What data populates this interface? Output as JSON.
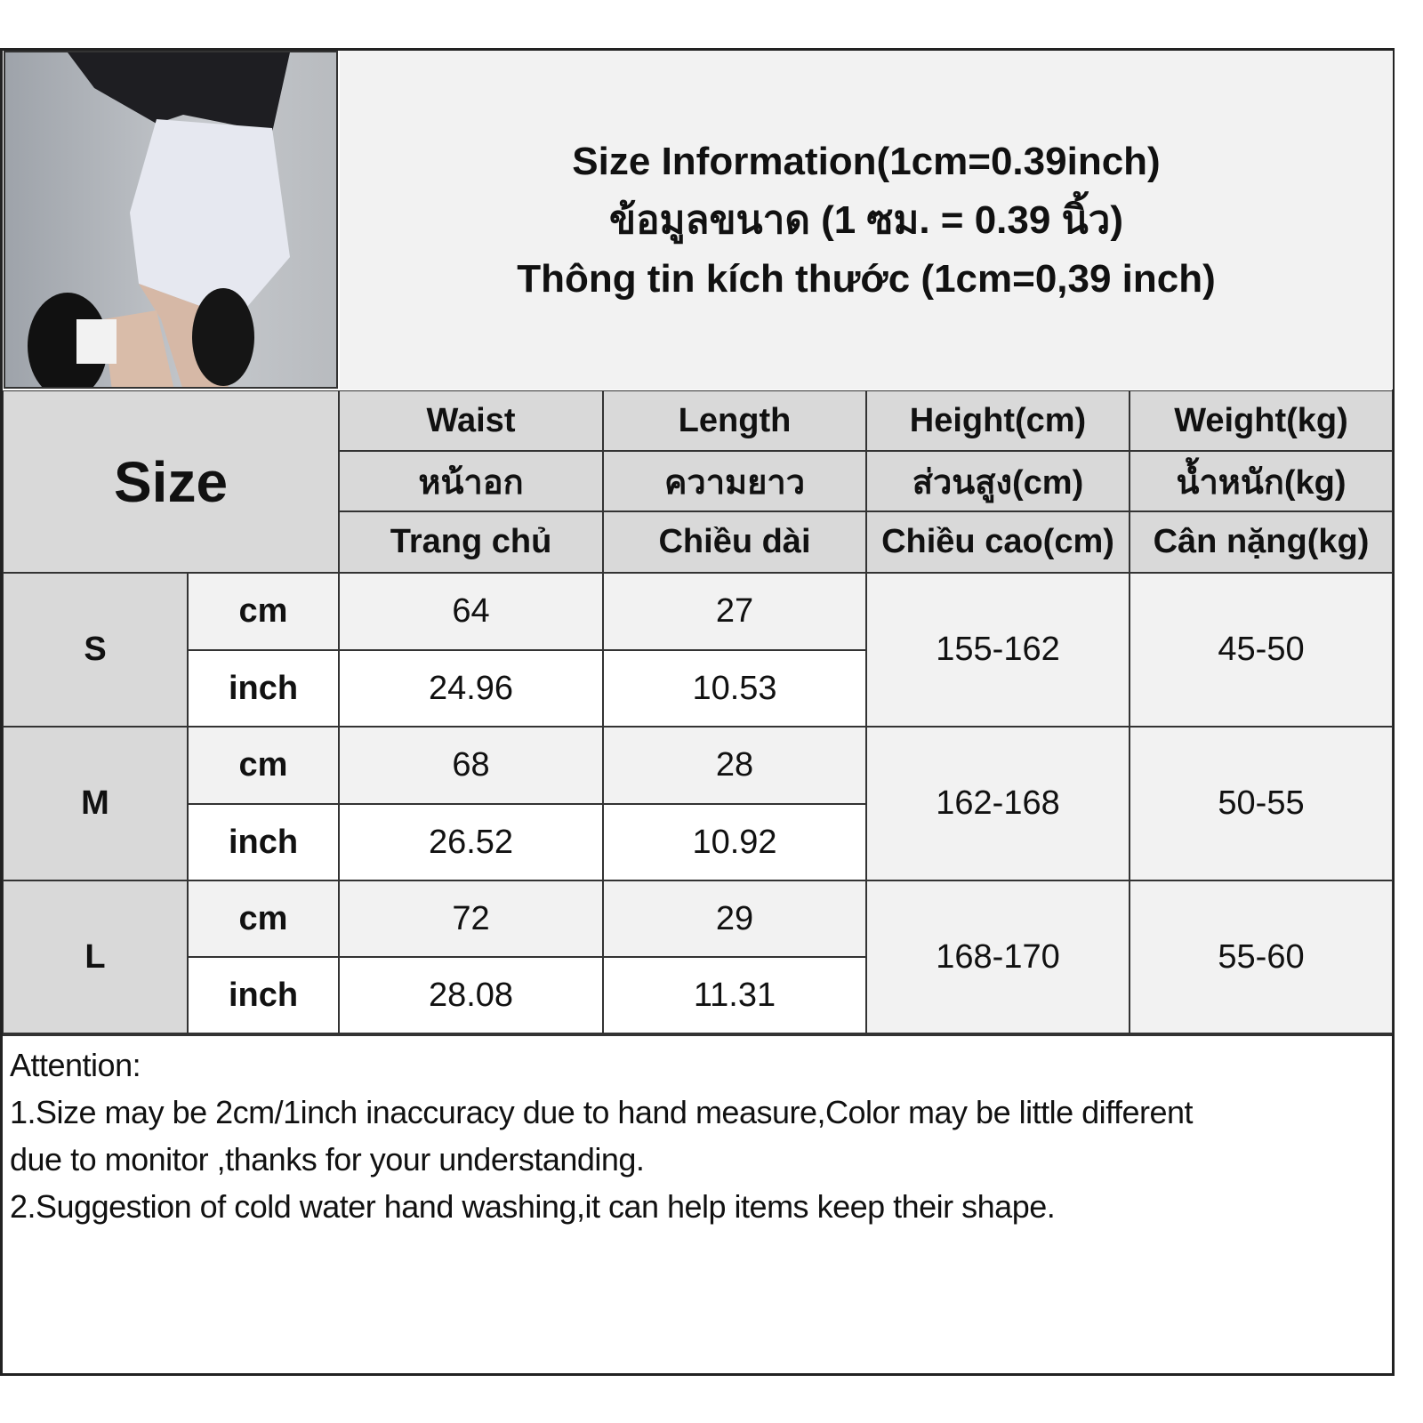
{
  "title": {
    "line1": "Size Information(1cm=0.39inch)",
    "line2": "ข้อมูลขนาด (1 ซม. = 0.39 นิ้ว)",
    "line3": "Thông tin kích thước (1cm=0,39 inch)"
  },
  "table": {
    "size_header": "Size",
    "columns": [
      {
        "en": "Waist",
        "th": "หน้าอก",
        "vi": "Trang chủ"
      },
      {
        "en": "Length",
        "th": "ความยาว",
        "vi": "Chiều dài"
      },
      {
        "en": "Height(cm)",
        "th": "ส่วนสูง(cm)",
        "vi": "Chiều cao(cm)"
      },
      {
        "en": "Weight(kg)",
        "th": "น้ำหนัก(kg)",
        "vi": "Cân nặng(kg)"
      }
    ],
    "units": {
      "cm": "cm",
      "inch": "inch"
    },
    "rows": [
      {
        "size": "S",
        "waist_cm": "64",
        "length_cm": "27",
        "waist_inch": "24.96",
        "length_inch": "10.53",
        "height": "155-162",
        "weight": "45-50"
      },
      {
        "size": "M",
        "waist_cm": "68",
        "length_cm": "28",
        "waist_inch": "26.52",
        "length_inch": "10.92",
        "height": "162-168",
        "weight": "50-55"
      },
      {
        "size": "L",
        "waist_cm": "72",
        "length_cm": "29",
        "waist_inch": "28.08",
        "length_inch": "11.31",
        "height": "168-170",
        "weight": "55-60"
      }
    ]
  },
  "notes": {
    "heading": "Attention:",
    "line1": "1.Size may be 2cm/1inch inaccuracy due to hand measure,Color may be little different",
    "line2": "due to monitor ,thanks for your understanding.",
    "line3": "2.Suggestion of cold water hand washing,it can help items keep their shape."
  }
}
